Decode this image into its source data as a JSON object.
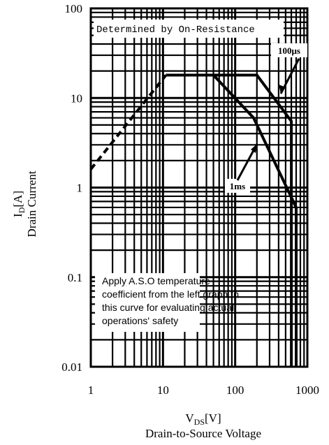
{
  "chart_data": {
    "type": "line",
    "x_scale": "log",
    "y_scale": "log",
    "xlim": [
      1,
      1000
    ],
    "ylim": [
      0.01,
      100
    ],
    "grid": true,
    "x_ticks": [
      "1",
      "10",
      "100",
      "1000"
    ],
    "y_ticks": [
      "100",
      "10",
      "1",
      "0.1",
      "0.01"
    ],
    "ylabel_var": "I",
    "ylabel_sub": "D",
    "ylabel_unit": "[A]",
    "ylabel_desc": "Drain Current",
    "xlabel_var": "V",
    "xlabel_sub": "DS",
    "xlabel_unit": "[V]",
    "xlabel_desc": "Drain-to-Source Voltage",
    "annotations": {
      "on_resistance": "Determined by On-Resistance",
      "us100": "100μs",
      "ms1": "1ms",
      "note_lines": [
        "Apply A.S.O temperature",
        "coefficient from the left graph to",
        "this curve for evaluating actual",
        "operations' safety"
      ]
    },
    "series": [
      {
        "label": "on-resistance limit",
        "style": "dashed",
        "x": [
          1,
          11
        ],
        "y": [
          1.6,
          18
        ]
      },
      {
        "label": "100μs",
        "style": "solid",
        "x": [
          11,
          200,
          600,
          600
        ],
        "y": [
          18,
          18,
          5.5,
          0.01
        ]
      },
      {
        "label": "1ms",
        "style": "solid",
        "x": [
          11,
          50,
          180,
          700,
          700
        ],
        "y": [
          18,
          18,
          6,
          0.6,
          0.01
        ]
      }
    ]
  }
}
